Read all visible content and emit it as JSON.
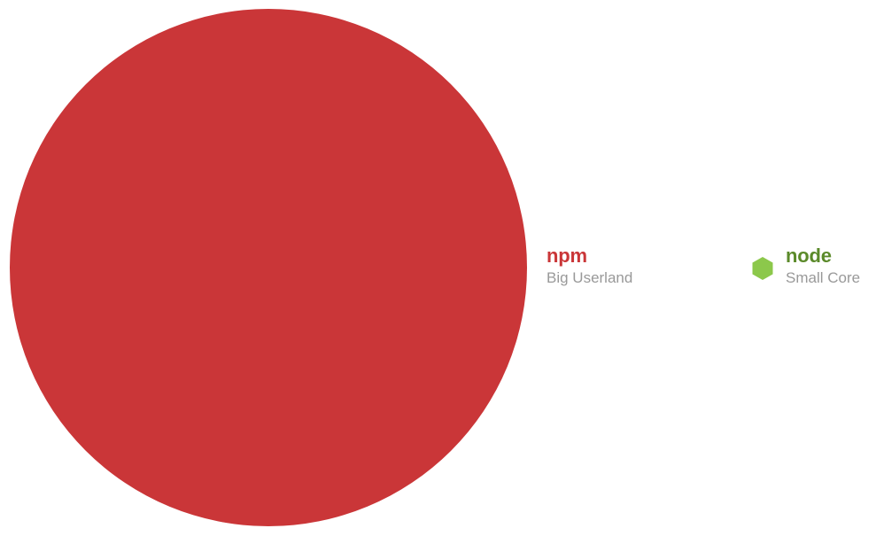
{
  "diagram": {
    "npm": {
      "title": "npm",
      "subtitle": "Big Userland",
      "color": "#ca3638"
    },
    "node": {
      "title": "node",
      "subtitle": "Small Core",
      "color": "#8cc84b",
      "title_color": "#5b8a2a",
      "icon": "hexagon-icon"
    },
    "subtitle_color": "#999999"
  }
}
